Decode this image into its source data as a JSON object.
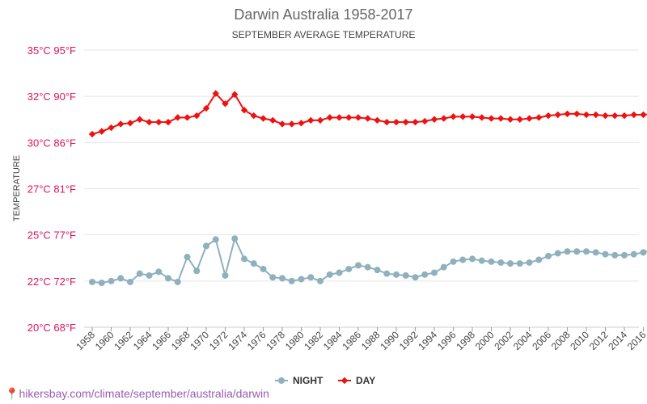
{
  "chart_data": {
    "type": "line",
    "title": "Darwin Australia 1958-2017",
    "subtitle": "SEPTEMBER AVERAGE TEMPERATURE",
    "ylabel": "TEMPERATURE",
    "xlabel": "",
    "ylim": [
      20,
      35
    ],
    "yticks": [
      {
        "value": 20,
        "label": "20°C 68°F"
      },
      {
        "value": 22.5,
        "label": "22°C 72°F"
      },
      {
        "value": 25,
        "label": "25°C 77°F"
      },
      {
        "value": 27.5,
        "label": "27°C 81°F"
      },
      {
        "value": 30,
        "label": "30°C 86°F"
      },
      {
        "value": 32.5,
        "label": "32°C 90°F"
      },
      {
        "value": 35,
        "label": "35°C 95°F"
      }
    ],
    "xticks": [
      1958,
      1960,
      1962,
      1964,
      1966,
      1968,
      1970,
      1972,
      1974,
      1976,
      1978,
      1980,
      1982,
      1984,
      1986,
      1988,
      1990,
      1992,
      1994,
      1996,
      1998,
      2000,
      2002,
      2004,
      2006,
      2008,
      2010,
      2012,
      2014,
      2016
    ],
    "x": [
      1958,
      1959,
      1960,
      1961,
      1962,
      1963,
      1964,
      1965,
      1966,
      1967,
      1968,
      1969,
      1970,
      1971,
      1972,
      1973,
      1974,
      1975,
      1976,
      1977,
      1978,
      1979,
      1980,
      1981,
      1982,
      1983,
      1984,
      1985,
      1986,
      1987,
      1988,
      1989,
      1990,
      1991,
      1992,
      1993,
      1994,
      1995,
      1996,
      1997,
      1998,
      1999,
      2000,
      2001,
      2002,
      2003,
      2004,
      2005,
      2006,
      2007,
      2008,
      2009,
      2010,
      2011,
      2012,
      2013,
      2014,
      2015,
      2016,
      2017
    ],
    "series": [
      {
        "name": "NIGHT",
        "color": "#8fb0bd",
        "marker": "circle",
        "values": [
          22.45,
          22.4,
          22.5,
          22.65,
          22.45,
          22.9,
          22.8,
          23.0,
          22.65,
          22.45,
          23.8,
          23.05,
          24.4,
          24.75,
          22.8,
          24.8,
          23.7,
          23.45,
          23.15,
          22.7,
          22.65,
          22.5,
          22.6,
          22.7,
          22.5,
          22.85,
          22.95,
          23.15,
          23.35,
          23.25,
          23.1,
          22.9,
          22.85,
          22.8,
          22.7,
          22.85,
          22.95,
          23.25,
          23.55,
          23.65,
          23.7,
          23.6,
          23.55,
          23.5,
          23.45,
          23.45,
          23.5,
          23.65,
          23.85,
          24.0,
          24.1,
          24.1,
          24.1,
          24.05,
          23.95,
          23.9,
          23.9,
          23.95,
          24.05,
          24.2
        ]
      },
      {
        "name": "DAY",
        "color": "#ee1111",
        "marker": "diamond",
        "values": [
          30.45,
          30.6,
          30.8,
          31.0,
          31.05,
          31.25,
          31.1,
          31.1,
          31.1,
          31.35,
          31.35,
          31.45,
          31.85,
          32.65,
          32.1,
          32.6,
          31.75,
          31.45,
          31.3,
          31.2,
          31.0,
          31.0,
          31.05,
          31.2,
          31.2,
          31.35,
          31.35,
          31.35,
          31.35,
          31.3,
          31.2,
          31.1,
          31.1,
          31.1,
          31.1,
          31.15,
          31.25,
          31.3,
          31.4,
          31.4,
          31.4,
          31.35,
          31.3,
          31.3,
          31.25,
          31.25,
          31.3,
          31.35,
          31.45,
          31.5,
          31.55,
          31.55,
          31.5,
          31.5,
          31.45,
          31.45,
          31.45,
          31.5,
          31.5,
          31.55
        ]
      }
    ],
    "legend": "bottom-center"
  },
  "footer": {
    "pin_icon": "📍",
    "url": "hikersbay.com/climate/september/australia/darwin"
  }
}
